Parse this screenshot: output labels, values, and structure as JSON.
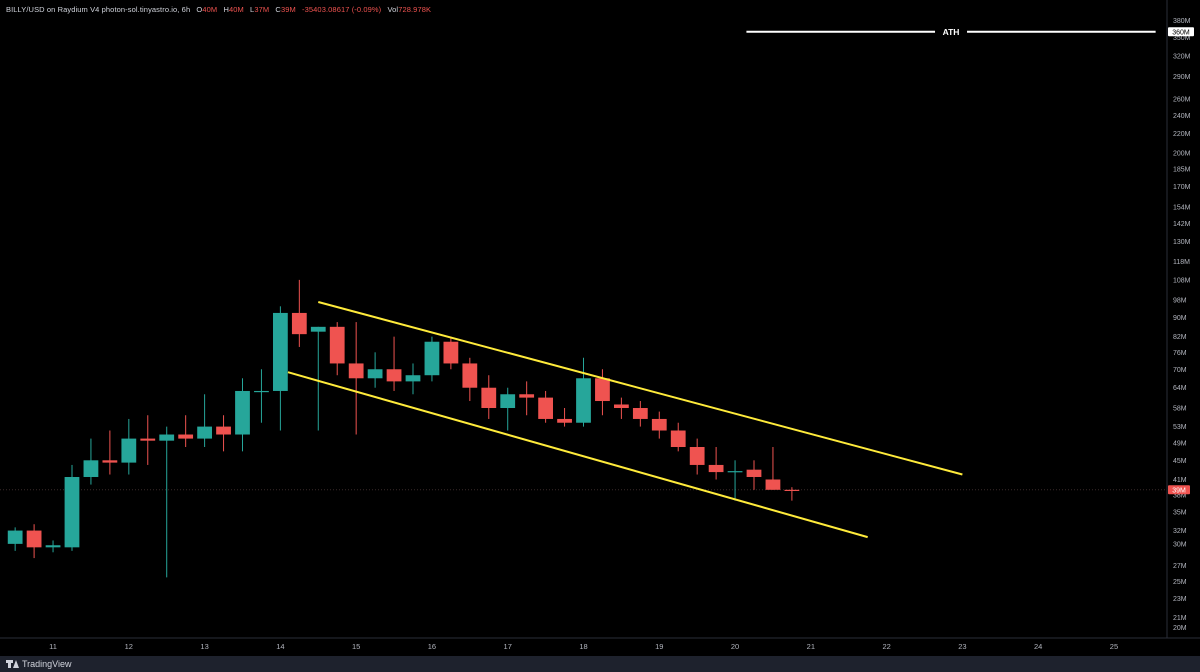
{
  "legend": {
    "symbol": "BILLY/USD on Raydium V4 photon-sol.tinyastro.io, 6h",
    "o_label": "O",
    "o_value": "40M",
    "h_label": "H",
    "h_value": "40M",
    "l_label": "L",
    "l_value": "37M",
    "c_label": "C",
    "c_value": "39M",
    "change": "-35403.08617 (-0.09%)",
    "vol_label": "Vol",
    "vol_value": "728.978K"
  },
  "footer": {
    "brand": "TradingView"
  },
  "chart_data": {
    "type": "candlestick",
    "title": "",
    "y_scale": "log",
    "ylim": [
      19,
      420
    ],
    "xlim": [
      10.3,
      25.7
    ],
    "x_ticks": [
      {
        "x": 11,
        "label": "11"
      },
      {
        "x": 12,
        "label": "12"
      },
      {
        "x": 13,
        "label": "13"
      },
      {
        "x": 14,
        "label": "14"
      },
      {
        "x": 15,
        "label": "15"
      },
      {
        "x": 16,
        "label": "16"
      },
      {
        "x": 17,
        "label": "17"
      },
      {
        "x": 18,
        "label": "18"
      },
      {
        "x": 19,
        "label": "19"
      },
      {
        "x": 20,
        "label": "20"
      },
      {
        "x": 21,
        "label": "21"
      },
      {
        "x": 22,
        "label": "22"
      },
      {
        "x": 23,
        "label": "23"
      },
      {
        "x": 24,
        "label": "24"
      },
      {
        "x": 25,
        "label": "25"
      }
    ],
    "y_ticks": [
      {
        "v": 20,
        "label": "20M"
      },
      {
        "v": 21,
        "label": "21M"
      },
      {
        "v": 23,
        "label": "23M"
      },
      {
        "v": 25,
        "label": "25M"
      },
      {
        "v": 27,
        "label": "27M"
      },
      {
        "v": 30,
        "label": "30M"
      },
      {
        "v": 32,
        "label": "32M"
      },
      {
        "v": 35,
        "label": "35M"
      },
      {
        "v": 38,
        "label": "38M"
      },
      {
        "v": 41,
        "label": "41M"
      },
      {
        "v": 45,
        "label": "45M"
      },
      {
        "v": 49,
        "label": "49M"
      },
      {
        "v": 53,
        "label": "53M"
      },
      {
        "v": 58,
        "label": "58M"
      },
      {
        "v": 64,
        "label": "64M"
      },
      {
        "v": 70,
        "label": "70M"
      },
      {
        "v": 76,
        "label": "76M"
      },
      {
        "v": 82,
        "label": "82M"
      },
      {
        "v": 90,
        "label": "90M"
      },
      {
        "v": 98,
        "label": "98M"
      },
      {
        "v": 108,
        "label": "108M"
      },
      {
        "v": 118,
        "label": "118M"
      },
      {
        "v": 130,
        "label": "130M"
      },
      {
        "v": 142,
        "label": "142M"
      },
      {
        "v": 154,
        "label": "154M"
      },
      {
        "v": 170,
        "label": "170M"
      },
      {
        "v": 185,
        "label": "185M"
      },
      {
        "v": 200,
        "label": "200M"
      },
      {
        "v": 220,
        "label": "220M"
      },
      {
        "v": 240,
        "label": "240M"
      },
      {
        "v": 260,
        "label": "260M"
      },
      {
        "v": 290,
        "label": "290M"
      },
      {
        "v": 320,
        "label": "320M"
      },
      {
        "v": 350,
        "label": "350M"
      },
      {
        "v": 380,
        "label": "380M"
      },
      {
        "v": 420,
        "label": "420M"
      }
    ],
    "candles": [
      {
        "x": 10.5,
        "o": 30,
        "h": 32.5,
        "l": 29,
        "c": 32
      },
      {
        "x": 10.75,
        "o": 32,
        "h": 33,
        "l": 28,
        "c": 29.5
      },
      {
        "x": 11.0,
        "o": 29.5,
        "h": 30.5,
        "l": 28.8,
        "c": 29.8
      },
      {
        "x": 11.25,
        "o": 29.5,
        "h": 44,
        "l": 29,
        "c": 41.5
      },
      {
        "x": 11.5,
        "o": 41.5,
        "h": 50,
        "l": 40,
        "c": 45
      },
      {
        "x": 11.75,
        "o": 45,
        "h": 52,
        "l": 42,
        "c": 44.5
      },
      {
        "x": 12.0,
        "o": 44.5,
        "h": 55,
        "l": 42,
        "c": 50
      },
      {
        "x": 12.25,
        "o": 50,
        "h": 56,
        "l": 44,
        "c": 49.5
      },
      {
        "x": 12.5,
        "o": 49.5,
        "h": 53,
        "l": 25.5,
        "c": 51
      },
      {
        "x": 12.75,
        "o": 51,
        "h": 56,
        "l": 48,
        "c": 50
      },
      {
        "x": 13.0,
        "o": 50,
        "h": 62,
        "l": 48,
        "c": 53
      },
      {
        "x": 13.25,
        "o": 53,
        "h": 56,
        "l": 47,
        "c": 51
      },
      {
        "x": 13.5,
        "o": 51,
        "h": 67,
        "l": 47,
        "c": 63
      },
      {
        "x": 13.75,
        "o": 63,
        "h": 70,
        "l": 54,
        "c": 63
      },
      {
        "x": 14.0,
        "o": 63,
        "h": 95,
        "l": 52,
        "c": 92
      },
      {
        "x": 14.25,
        "o": 92,
        "h": 108,
        "l": 78,
        "c": 83
      },
      {
        "x": 14.5,
        "o": 84,
        "h": 86,
        "l": 52,
        "c": 86
      },
      {
        "x": 14.75,
        "o": 86,
        "h": 88,
        "l": 68,
        "c": 72
      },
      {
        "x": 15.0,
        "o": 72,
        "h": 88,
        "l": 51,
        "c": 67
      },
      {
        "x": 15.25,
        "o": 67,
        "h": 76,
        "l": 64,
        "c": 70
      },
      {
        "x": 15.5,
        "o": 70,
        "h": 82,
        "l": 63,
        "c": 66
      },
      {
        "x": 15.75,
        "o": 66,
        "h": 72,
        "l": 62,
        "c": 68
      },
      {
        "x": 16.0,
        "o": 68,
        "h": 82,
        "l": 66,
        "c": 80
      },
      {
        "x": 16.25,
        "o": 80,
        "h": 82,
        "l": 70,
        "c": 72
      },
      {
        "x": 16.5,
        "o": 72,
        "h": 74,
        "l": 60,
        "c": 64
      },
      {
        "x": 16.75,
        "o": 64,
        "h": 68,
        "l": 55,
        "c": 58
      },
      {
        "x": 17.0,
        "o": 58,
        "h": 64,
        "l": 52,
        "c": 62
      },
      {
        "x": 17.25,
        "o": 62,
        "h": 66,
        "l": 56,
        "c": 61
      },
      {
        "x": 17.5,
        "o": 61,
        "h": 63,
        "l": 54,
        "c": 55
      },
      {
        "x": 17.75,
        "o": 55,
        "h": 58,
        "l": 53,
        "c": 54
      },
      {
        "x": 18.0,
        "o": 54,
        "h": 74,
        "l": 53,
        "c": 67
      },
      {
        "x": 18.25,
        "o": 67,
        "h": 70,
        "l": 56,
        "c": 60
      },
      {
        "x": 18.5,
        "o": 59,
        "h": 61,
        "l": 55,
        "c": 58
      },
      {
        "x": 18.75,
        "o": 58,
        "h": 60,
        "l": 53,
        "c": 55
      },
      {
        "x": 19.0,
        "o": 55,
        "h": 57,
        "l": 50,
        "c": 52
      },
      {
        "x": 19.25,
        "o": 52,
        "h": 54,
        "l": 47,
        "c": 48
      },
      {
        "x": 19.5,
        "o": 48,
        "h": 50,
        "l": 42,
        "c": 44
      },
      {
        "x": 19.75,
        "o": 44,
        "h": 48,
        "l": 41,
        "c": 42.5
      },
      {
        "x": 20.0,
        "o": 42.5,
        "h": 45,
        "l": 37,
        "c": 42.7
      },
      {
        "x": 20.25,
        "o": 43,
        "h": 45,
        "l": 39,
        "c": 41.5
      },
      {
        "x": 20.5,
        "o": 41,
        "h": 48,
        "l": 39,
        "c": 39
      },
      {
        "x": 20.75,
        "o": 39,
        "h": 39.5,
        "l": 37,
        "c": 38.8
      }
    ],
    "trendlines": [
      {
        "x1": 14.5,
        "y1": 97,
        "x2": 23.0,
        "y2": 42
      },
      {
        "x1": 14.1,
        "y1": 69,
        "x2": 21.75,
        "y2": 31
      }
    ],
    "ath": {
      "value": 360,
      "label": "ATH",
      "price_label": "360M",
      "x1": 20.15,
      "x2": 25.55
    },
    "last_price": {
      "value": 39,
      "label": "39M"
    },
    "colors": {
      "up": "#26a69a",
      "down": "#ef5350",
      "trend": "#ffeb3b",
      "ath": "#ffffff",
      "axis_text": "#b2b5be",
      "last": "#ef5350"
    }
  }
}
